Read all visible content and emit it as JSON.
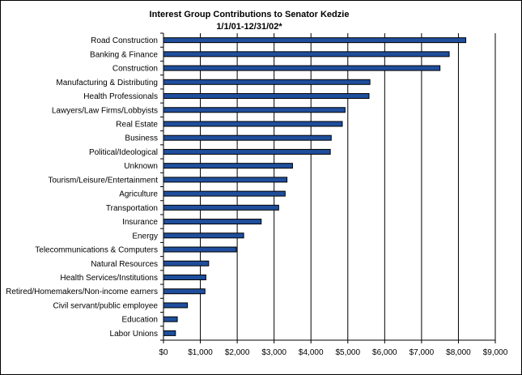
{
  "chart_data": {
    "type": "bar",
    "orientation": "horizontal",
    "title": "Interest Group Contributions to Senator Kedzie",
    "subtitle": "1/1/01-12/31/02*",
    "categories": [
      "Road Construction",
      "Banking & Finance",
      "Construction",
      "Manufacturing & Distributing",
      "Health Professionals",
      "Lawyers/Law Firms/Lobbyists",
      "Real Estate",
      "Business",
      "Political/Ideological",
      "Unknown",
      "Tourism/Leisure/Entertainment",
      "Agriculture",
      "Transportation",
      "Insurance",
      "Energy",
      "Telecommunications & Computers",
      "Natural Resources",
      "Health Services/Institutions",
      "Retired/Homemakers/Non-income earners",
      "Civil servant/public employee",
      "Education",
      "Labor Unions"
    ],
    "values": [
      8200,
      7750,
      7500,
      5600,
      5575,
      4925,
      4850,
      4550,
      4525,
      3500,
      3350,
      3300,
      3125,
      2650,
      2175,
      1975,
      1225,
      1150,
      1125,
      650,
      375,
      325
    ],
    "x_ticks": [
      "$0",
      "$1,000",
      "$2,000",
      "$3,000",
      "$4,000",
      "$5,000",
      "$6,000",
      "$7,000",
      "$8,000",
      "$9,000"
    ],
    "xlim": [
      0,
      9000
    ],
    "x_tick_step": 1000,
    "grid": "vertical",
    "legend": "none",
    "colors": {
      "bar": "#1f4e9c",
      "bar_edge": "#000000",
      "grid": "#000000",
      "axis": "#000000"
    }
  }
}
